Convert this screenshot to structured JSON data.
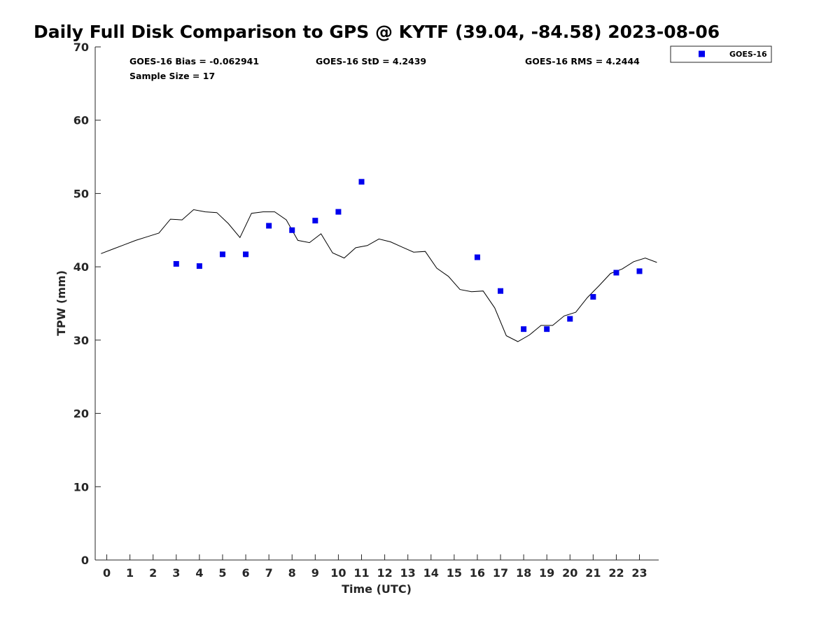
{
  "chart_data": {
    "type": "scatter",
    "title": "Daily Full Disk Comparison to GPS @ KYTF (39.04, -84.58) 2023-08-06",
    "xlabel": "Time (UTC)",
    "ylabel": "TPW (mm)",
    "xlim": [
      -0.5,
      23.83
    ],
    "ylim": [
      0,
      70
    ],
    "xticks": [
      0,
      1,
      2,
      3,
      4,
      5,
      6,
      7,
      8,
      9,
      10,
      11,
      12,
      13,
      14,
      15,
      16,
      17,
      18,
      19,
      20,
      21,
      22,
      23
    ],
    "yticks": [
      0,
      10,
      20,
      30,
      40,
      50,
      60,
      70
    ],
    "grid": false,
    "legend_position": "outside-top-right",
    "stats": {
      "bias": "GOES-16 Bias = -0.062941",
      "std": "GOES-16 StD = 4.2439",
      "rms": "GOES-16 RMS = 4.2444",
      "sample_size": "Sample Size = 17"
    },
    "series": [
      {
        "name": "GOES-16",
        "kind": "scatter",
        "color": "#0000ee",
        "marker": "square",
        "x": [
          3,
          4,
          5,
          6,
          7,
          8,
          9,
          10,
          11,
          16,
          17,
          18,
          19,
          20,
          21,
          22,
          23
        ],
        "y": [
          40.4,
          40.1,
          41.7,
          41.7,
          45.6,
          45.0,
          46.3,
          47.5,
          51.6,
          41.3,
          36.7,
          31.5,
          31.5,
          32.9,
          35.9,
          39.2,
          39.4
        ]
      },
      {
        "kind": "line",
        "color": "#000000",
        "x": [
          -0.25,
          0.25,
          0.75,
          1.25,
          1.75,
          2.25,
          2.75,
          3.25,
          3.75,
          4.25,
          4.75,
          5.25,
          5.75,
          6.25,
          6.75,
          7.25,
          7.75,
          8.25,
          8.75,
          9.25,
          9.75,
          10.25,
          10.75,
          11.25,
          11.75,
          12.25,
          12.75,
          13.25,
          13.75,
          14.25,
          14.75,
          15.25,
          15.75,
          16.25,
          16.75,
          17.25,
          17.75,
          18.25,
          18.75,
          19.25,
          19.75,
          20.25,
          20.75,
          21.25,
          21.75,
          22.25,
          22.75,
          23.25,
          23.75
        ],
        "y": [
          41.8,
          42.4,
          43.0,
          43.6,
          44.1,
          44.6,
          46.5,
          46.4,
          47.8,
          47.5,
          47.4,
          45.9,
          44.0,
          47.3,
          47.5,
          47.5,
          46.4,
          43.6,
          43.3,
          44.5,
          41.9,
          41.2,
          42.6,
          42.9,
          43.8,
          43.4,
          42.7,
          42.0,
          42.1,
          39.8,
          38.7,
          36.9,
          36.6,
          36.7,
          34.4,
          30.6,
          29.8,
          30.7,
          32.0,
          32.0,
          33.3,
          33.8,
          35.8,
          37.4,
          39.1,
          39.7,
          40.7,
          41.2,
          40.6
        ]
      }
    ]
  }
}
